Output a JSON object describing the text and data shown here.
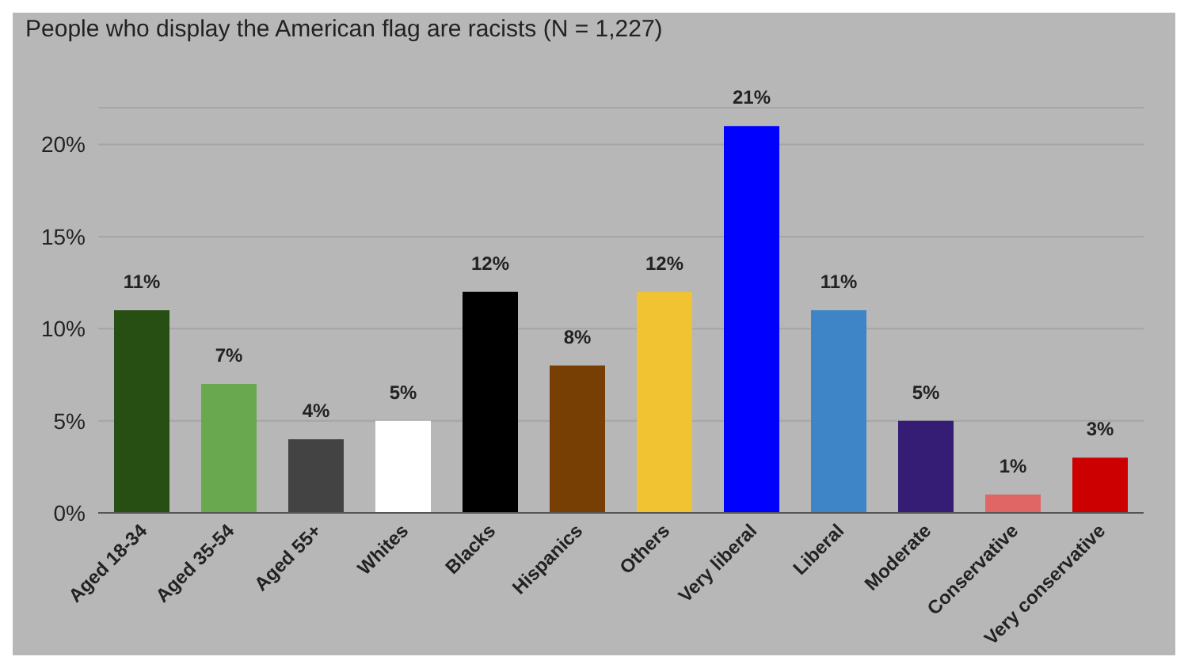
{
  "chart_data": {
    "type": "bar",
    "title": "People who display the American flag are racists (N = 1,227)",
    "categories": [
      "Aged 18-34",
      "Aged 35-54",
      "Aged 55+",
      "Whites",
      "Blacks",
      "Hispanics",
      "Others",
      "Very liberal",
      "Liberal",
      "Moderate",
      "Conservative",
      "Very conservative"
    ],
    "values": [
      11,
      7,
      4,
      5,
      12,
      8,
      12,
      21,
      11,
      5,
      1,
      3
    ],
    "colors": [
      "#274e13",
      "#6aa84f",
      "#434343",
      "#ffffff",
      "#000000",
      "#783f04",
      "#f1c232",
      "#0000ff",
      "#3d85c6",
      "#351c75",
      "#e06666",
      "#cc0000"
    ],
    "value_labels": [
      "11%",
      "7%",
      "4%",
      "5%",
      "12%",
      "8%",
      "12%",
      "21%",
      "11%",
      "5%",
      "1%",
      "3%"
    ],
    "ylim": [
      0,
      22
    ],
    "yticks": [
      {
        "value": 0,
        "label": "0%"
      },
      {
        "value": 5,
        "label": "5%"
      },
      {
        "value": 10,
        "label": "10%"
      },
      {
        "value": 15,
        "label": "15%"
      },
      {
        "value": 20,
        "label": "20%"
      }
    ],
    "grid": "y"
  }
}
